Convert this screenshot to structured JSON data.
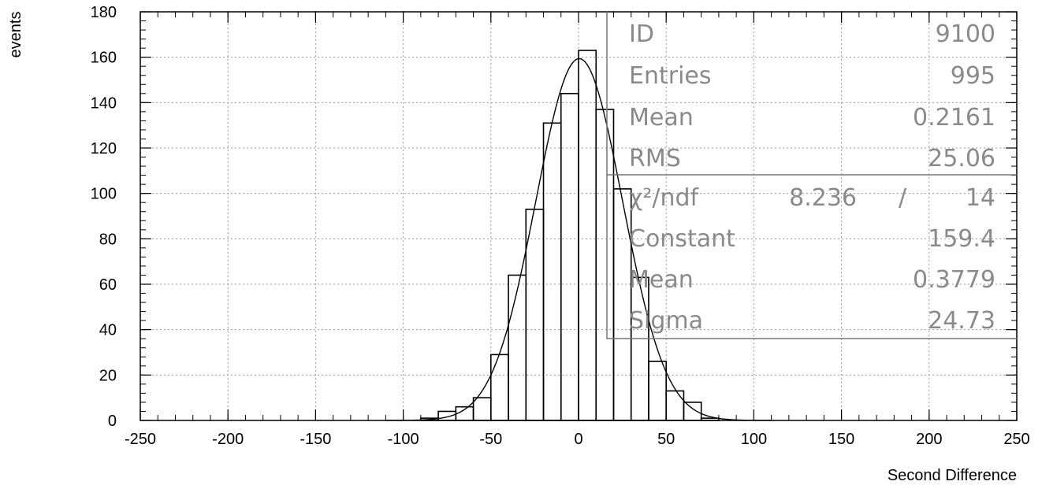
{
  "chart_data": {
    "type": "histogram",
    "xlabel": "Second Difference",
    "ylabel": "events",
    "xlim": [
      -250,
      250
    ],
    "ylim": [
      0,
      180
    ],
    "grid": true,
    "x_tick_labels": [
      "-250",
      "-200",
      "-150",
      "-100",
      "-50",
      "0",
      "50",
      "100",
      "150",
      "200",
      "250"
    ],
    "y_tick_labels": [
      "0",
      "20",
      "40",
      "60",
      "80",
      "100",
      "120",
      "140",
      "160",
      "180"
    ],
    "bin_width": 10,
    "bins": [
      {
        "x0": -100,
        "x1": -90,
        "y": 0
      },
      {
        "x0": -90,
        "x1": -80,
        "y": 1
      },
      {
        "x0": -80,
        "x1": -70,
        "y": 4
      },
      {
        "x0": -70,
        "x1": -60,
        "y": 6
      },
      {
        "x0": -60,
        "x1": -50,
        "y": 10
      },
      {
        "x0": -50,
        "x1": -40,
        "y": 29
      },
      {
        "x0": -40,
        "x1": -30,
        "y": 64
      },
      {
        "x0": -30,
        "x1": -20,
        "y": 93
      },
      {
        "x0": -20,
        "x1": -10,
        "y": 131
      },
      {
        "x0": -10,
        "x1": 0,
        "y": 144
      },
      {
        "x0": 0,
        "x1": 10,
        "y": 163
      },
      {
        "x0": 10,
        "x1": 20,
        "y": 137
      },
      {
        "x0": 20,
        "x1": 30,
        "y": 102
      },
      {
        "x0": 30,
        "x1": 40,
        "y": 63
      },
      {
        "x0": 40,
        "x1": 50,
        "y": 26
      },
      {
        "x0": 50,
        "x1": 60,
        "y": 13
      },
      {
        "x0": 60,
        "x1": 70,
        "y": 8
      },
      {
        "x0": 70,
        "x1": 80,
        "y": 1
      },
      {
        "x0": 80,
        "x1": 90,
        "y": 0
      }
    ],
    "fit": {
      "function": "gaussian",
      "constant": 159.4,
      "mean": 0.3779,
      "sigma": 24.73
    },
    "stats_box": {
      "id_label": "ID",
      "id_value": "9100",
      "entries_label": "Entries",
      "entries_value": "995",
      "mean_label": "Mean",
      "mean_value": "0.2161",
      "rms_label": "RMS",
      "rms_value": "25.06",
      "chi2_label": "χ²/ndf",
      "chi2_value": "8.236",
      "chi2_sep": "/",
      "ndf_value": "14",
      "constant_label": "Constant",
      "constant_value": "159.4",
      "fit_mean_label": "Mean",
      "fit_mean_value": "0.3779",
      "sigma_label": "Sigma",
      "sigma_value": "24.73"
    }
  }
}
